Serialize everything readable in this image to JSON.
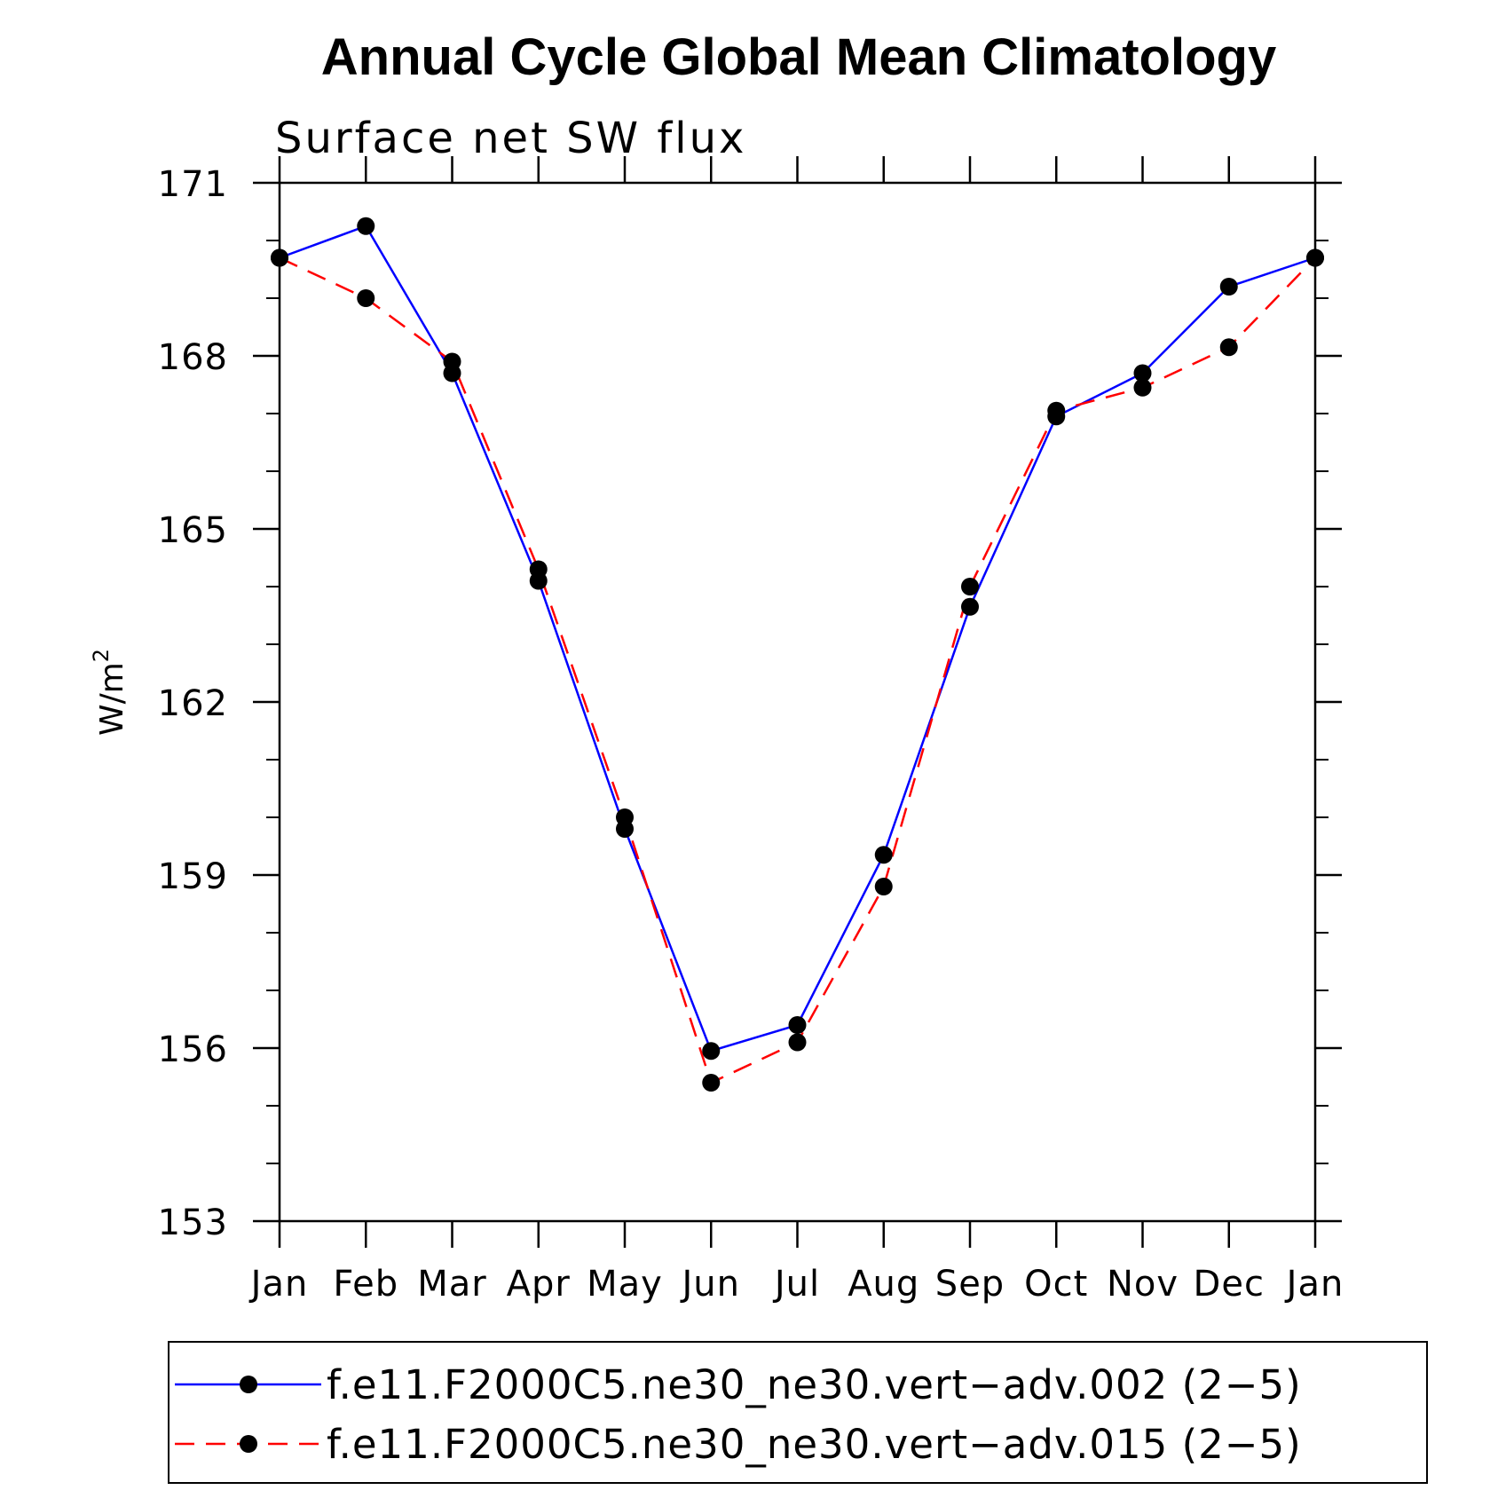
{
  "chart_data": {
    "type": "line",
    "title": "Annual Cycle Global Mean Climatology",
    "subtitle": "Surface net SW flux",
    "ylabel": "W/m",
    "ylabel_superscript": "2",
    "xlabel": "",
    "categories": [
      "Jan",
      "Feb",
      "Mar",
      "Apr",
      "May",
      "Jun",
      "Jul",
      "Aug",
      "Sep",
      "Oct",
      "Nov",
      "Dec",
      "Jan"
    ],
    "ylim": [
      153,
      171
    ],
    "yticks": [
      153,
      156,
      159,
      162,
      165,
      168,
      171
    ],
    "y_minor_step": 1,
    "grid": false,
    "legend_position": "bottom",
    "series": [
      {
        "name": "f.e11.F2000C5.ne30_ne30.vert−adv.002 (2−5)",
        "color": "#0000ff",
        "dash": "solid",
        "marker": "filled-circle",
        "values": [
          169.7,
          170.25,
          167.7,
          164.1,
          159.8,
          155.95,
          156.4,
          159.35,
          163.65,
          166.95,
          167.7,
          169.2,
          169.7
        ]
      },
      {
        "name": "f.e11.F2000C5.ne30_ne30.vert−adv.015 (2−5)",
        "color": "#ff0000",
        "dash": "dashed",
        "marker": "filled-circle",
        "values": [
          169.7,
          169.0,
          167.9,
          164.3,
          160.0,
          155.4,
          156.1,
          158.8,
          164.0,
          167.05,
          167.45,
          168.15,
          169.7
        ]
      }
    ]
  }
}
